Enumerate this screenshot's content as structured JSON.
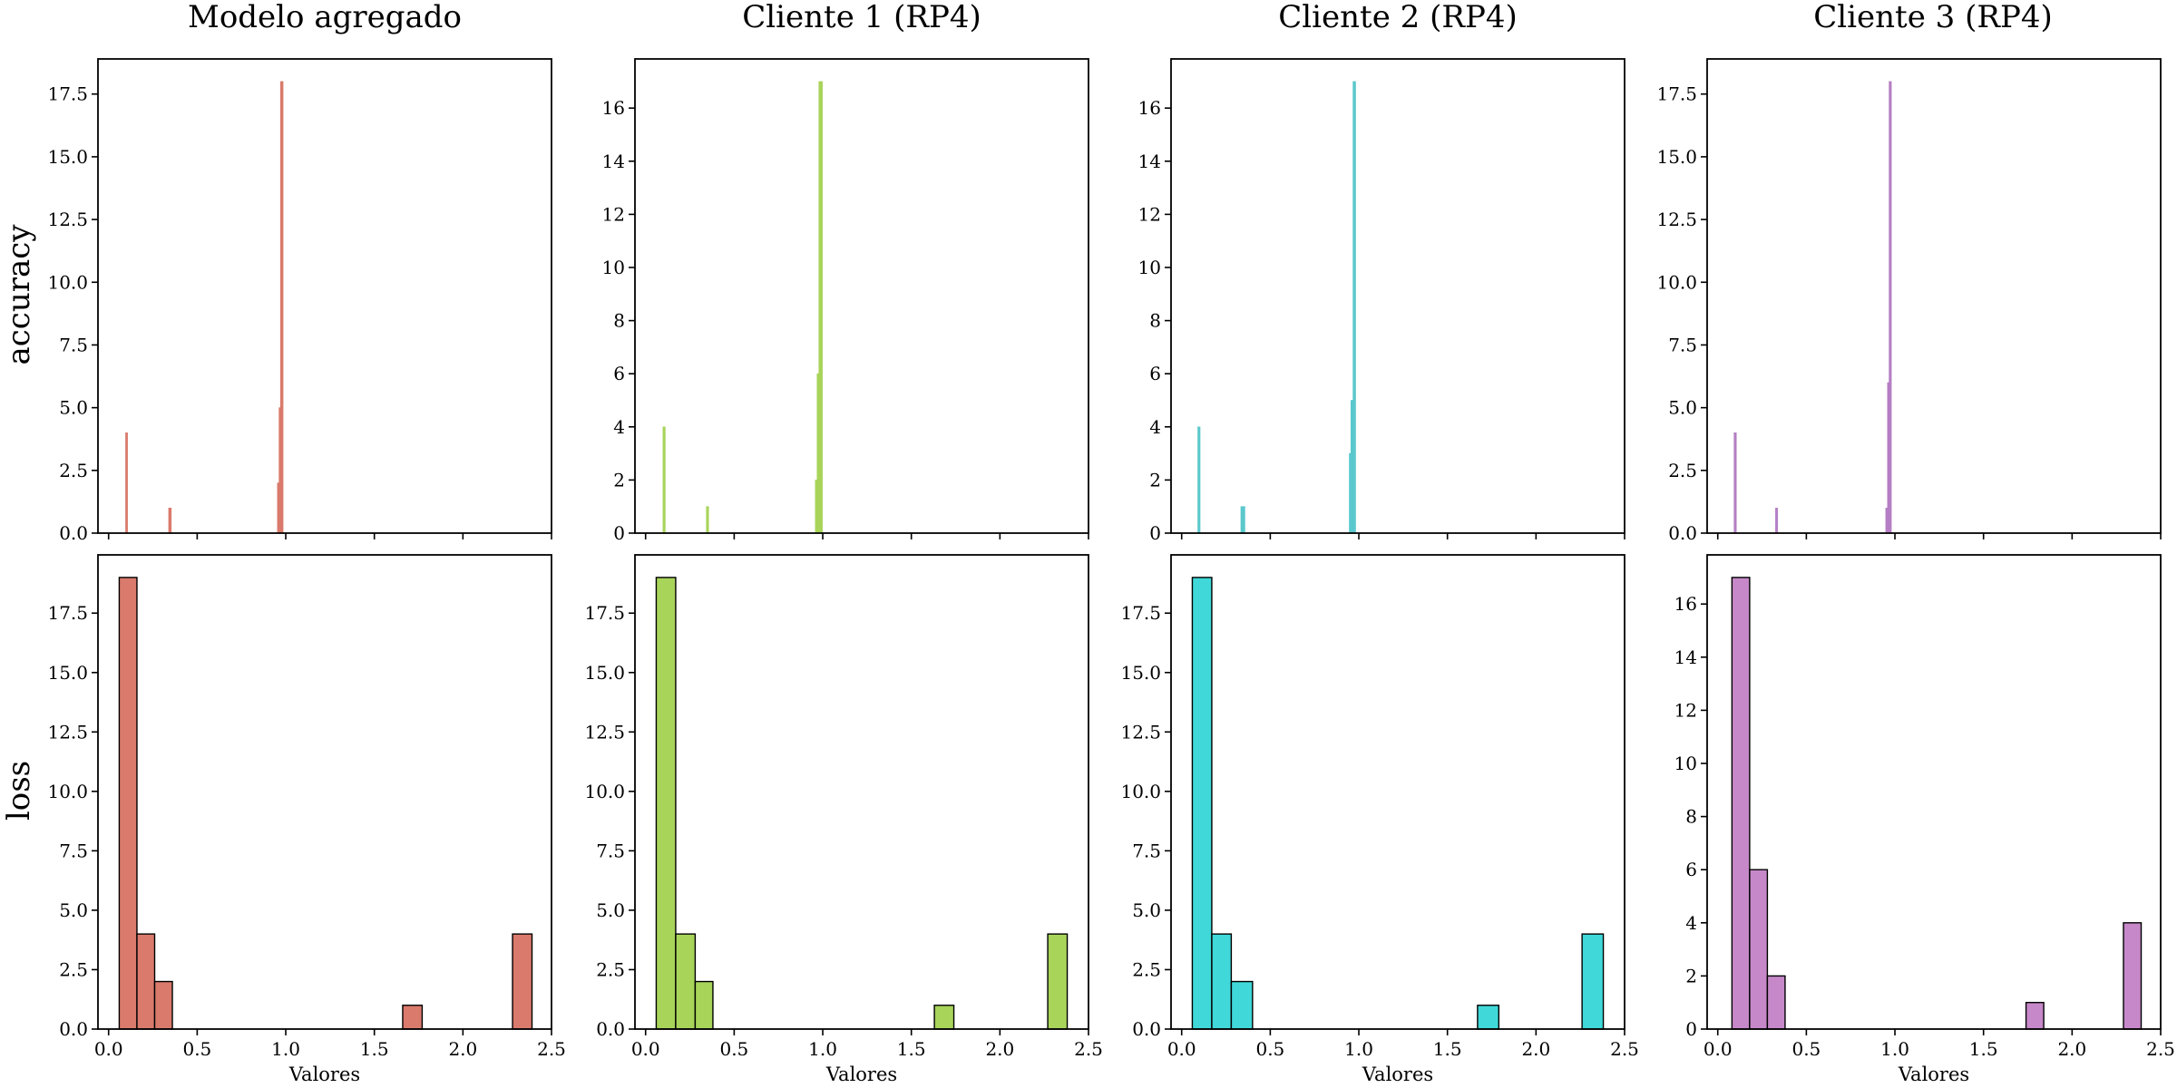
{
  "figure": {
    "col_titles": [
      "Modelo agregado",
      "Cliente 1 (RP4)",
      "Cliente 2 (RP4)",
      "Cliente 3 (RP4)"
    ],
    "row_labels": [
      "accuracy",
      "loss"
    ],
    "x_label": "Valores"
  },
  "chart_data": [
    {
      "type": "bar",
      "panel": "Modelo agregado / accuracy",
      "title": "Modelo agregado",
      "ylabel": "accuracy",
      "xlabel": "",
      "xlim": [
        -0.06,
        2.5
      ],
      "ylim": [
        0,
        18.9
      ],
      "xticks": [
        0.0,
        0.5,
        1.0,
        1.5,
        2.0,
        2.5
      ],
      "yticks": [
        0.0,
        2.5,
        5.0,
        7.5,
        10.0,
        12.5,
        15.0,
        17.5
      ],
      "show_xtick_labels": false,
      "color": "#d97a6c",
      "bins": [
        {
          "x0": 0.096,
          "x1": 0.107,
          "count": 4
        },
        {
          "x0": 0.339,
          "x1": 0.354,
          "count": 1
        },
        {
          "x0": 0.953,
          "x1": 0.962,
          "count": 2
        },
        {
          "x0": 0.962,
          "x1": 0.97,
          "count": 5
        },
        {
          "x0": 0.97,
          "x1": 0.985,
          "count": 18
        }
      ]
    },
    {
      "type": "bar",
      "panel": "Cliente 1 (RP4) / accuracy",
      "title": "Cliente 1 (RP4)",
      "ylabel": "",
      "xlabel": "",
      "xlim": [
        -0.06,
        2.5
      ],
      "ylim": [
        0,
        17.85
      ],
      "xticks": [
        0.0,
        0.5,
        1.0,
        1.5,
        2.0,
        2.5
      ],
      "yticks": [
        0,
        2,
        4,
        6,
        8,
        10,
        12,
        14,
        16
      ],
      "show_xtick_labels": false,
      "color": "#a8d45a",
      "bins": [
        {
          "x0": 0.098,
          "x1": 0.111,
          "count": 4
        },
        {
          "x0": 0.343,
          "x1": 0.356,
          "count": 1
        },
        {
          "x0": 0.958,
          "x1": 0.968,
          "count": 2
        },
        {
          "x0": 0.968,
          "x1": 0.978,
          "count": 6
        },
        {
          "x0": 0.978,
          "x1": 0.998,
          "count": 17
        }
      ]
    },
    {
      "type": "bar",
      "panel": "Cliente 2 (RP4) / accuracy",
      "title": "Cliente 2 (RP4)",
      "ylabel": "",
      "xlabel": "",
      "xlim": [
        -0.06,
        2.5
      ],
      "ylim": [
        0,
        17.85
      ],
      "xticks": [
        0.0,
        0.5,
        1.0,
        1.5,
        2.0,
        2.5
      ],
      "yticks": [
        0,
        2,
        4,
        6,
        8,
        10,
        12,
        14,
        16
      ],
      "show_xtick_labels": false,
      "color": "#5bc8cc",
      "bins": [
        {
          "x0": 0.091,
          "x1": 0.104,
          "count": 4
        },
        {
          "x0": 0.334,
          "x1": 0.357,
          "count": 1
        },
        {
          "x0": 0.946,
          "x1": 0.955,
          "count": 3
        },
        {
          "x0": 0.955,
          "x1": 0.967,
          "count": 5
        },
        {
          "x0": 0.967,
          "x1": 0.982,
          "count": 17
        }
      ]
    },
    {
      "type": "bar",
      "panel": "Cliente 3 (RP4) / accuracy",
      "title": "Cliente 3 (RP4)",
      "ylabel": "",
      "xlabel": "",
      "xlim": [
        -0.06,
        2.5
      ],
      "ylim": [
        0,
        18.9
      ],
      "xticks": [
        0.0,
        0.5,
        1.0,
        1.5,
        2.0,
        2.5
      ],
      "yticks": [
        0.0,
        2.5,
        5.0,
        7.5,
        10.0,
        12.5,
        15.0,
        17.5
      ],
      "show_xtick_labels": false,
      "color": "#b57fc4",
      "bins": [
        {
          "x0": 0.092,
          "x1": 0.105,
          "count": 4
        },
        {
          "x0": 0.326,
          "x1": 0.338,
          "count": 1
        },
        {
          "x0": 0.948,
          "x1": 0.958,
          "count": 1
        },
        {
          "x0": 0.958,
          "x1": 0.967,
          "count": 6
        },
        {
          "x0": 0.967,
          "x1": 0.98,
          "count": 18
        }
      ]
    },
    {
      "type": "bar",
      "panel": "Modelo agregado / loss",
      "title": "",
      "ylabel": "loss",
      "xlabel": "Valores",
      "xlim": [
        -0.06,
        2.5
      ],
      "ylim": [
        0,
        19.95
      ],
      "xticks": [
        0.0,
        0.5,
        1.0,
        1.5,
        2.0,
        2.5
      ],
      "yticks": [
        0.0,
        2.5,
        5.0,
        7.5,
        10.0,
        12.5,
        15.0,
        17.5
      ],
      "show_xtick_labels": true,
      "color": "#d97a6c",
      "bins": [
        {
          "x0": 0.06,
          "x1": 0.16,
          "count": 19
        },
        {
          "x0": 0.16,
          "x1": 0.26,
          "count": 4
        },
        {
          "x0": 0.26,
          "x1": 0.36,
          "count": 2
        },
        {
          "x0": 1.66,
          "x1": 1.77,
          "count": 1
        },
        {
          "x0": 2.28,
          "x1": 2.39,
          "count": 4
        }
      ]
    },
    {
      "type": "bar",
      "panel": "Cliente 1 (RP4) / loss",
      "title": "",
      "ylabel": "",
      "xlabel": "Valores",
      "xlim": [
        -0.06,
        2.5
      ],
      "ylim": [
        0,
        19.95
      ],
      "xticks": [
        0.0,
        0.5,
        1.0,
        1.5,
        2.0,
        2.5
      ],
      "yticks": [
        0.0,
        2.5,
        5.0,
        7.5,
        10.0,
        12.5,
        15.0,
        17.5
      ],
      "show_xtick_labels": true,
      "color": "#a8d45a",
      "bins": [
        {
          "x0": 0.06,
          "x1": 0.17,
          "count": 19
        },
        {
          "x0": 0.17,
          "x1": 0.28,
          "count": 4
        },
        {
          "x0": 0.28,
          "x1": 0.38,
          "count": 2
        },
        {
          "x0": 1.63,
          "x1": 1.74,
          "count": 1
        },
        {
          "x0": 2.27,
          "x1": 2.38,
          "count": 4
        }
      ]
    },
    {
      "type": "bar",
      "panel": "Cliente 2 (RP4) / loss",
      "title": "",
      "ylabel": "",
      "xlabel": "Valores",
      "xlim": [
        -0.06,
        2.5
      ],
      "ylim": [
        0,
        19.95
      ],
      "xticks": [
        0.0,
        0.5,
        1.0,
        1.5,
        2.0,
        2.5
      ],
      "yticks": [
        0.0,
        2.5,
        5.0,
        7.5,
        10.0,
        12.5,
        15.0,
        17.5
      ],
      "show_xtick_labels": true,
      "color": "#40d8d8",
      "bins": [
        {
          "x0": 0.06,
          "x1": 0.17,
          "count": 19
        },
        {
          "x0": 0.17,
          "x1": 0.28,
          "count": 4
        },
        {
          "x0": 0.28,
          "x1": 0.4,
          "count": 2
        },
        {
          "x0": 1.67,
          "x1": 1.79,
          "count": 1
        },
        {
          "x0": 2.26,
          "x1": 2.38,
          "count": 4
        }
      ]
    },
    {
      "type": "bar",
      "panel": "Cliente 3 (RP4) / loss",
      "title": "",
      "ylabel": "",
      "xlabel": "Valores",
      "xlim": [
        -0.06,
        2.5
      ],
      "ylim": [
        0,
        17.85
      ],
      "xticks": [
        0.0,
        0.5,
        1.0,
        1.5,
        2.0,
        2.5
      ],
      "yticks": [
        0,
        2,
        4,
        6,
        8,
        10,
        12,
        14,
        16
      ],
      "show_xtick_labels": true,
      "color": "#c688c8",
      "bins": [
        {
          "x0": 0.08,
          "x1": 0.18,
          "count": 17
        },
        {
          "x0": 0.18,
          "x1": 0.28,
          "count": 6
        },
        {
          "x0": 0.28,
          "x1": 0.38,
          "count": 2
        },
        {
          "x0": 1.74,
          "x1": 1.84,
          "count": 1
        },
        {
          "x0": 2.29,
          "x1": 2.39,
          "count": 4
        }
      ]
    }
  ]
}
